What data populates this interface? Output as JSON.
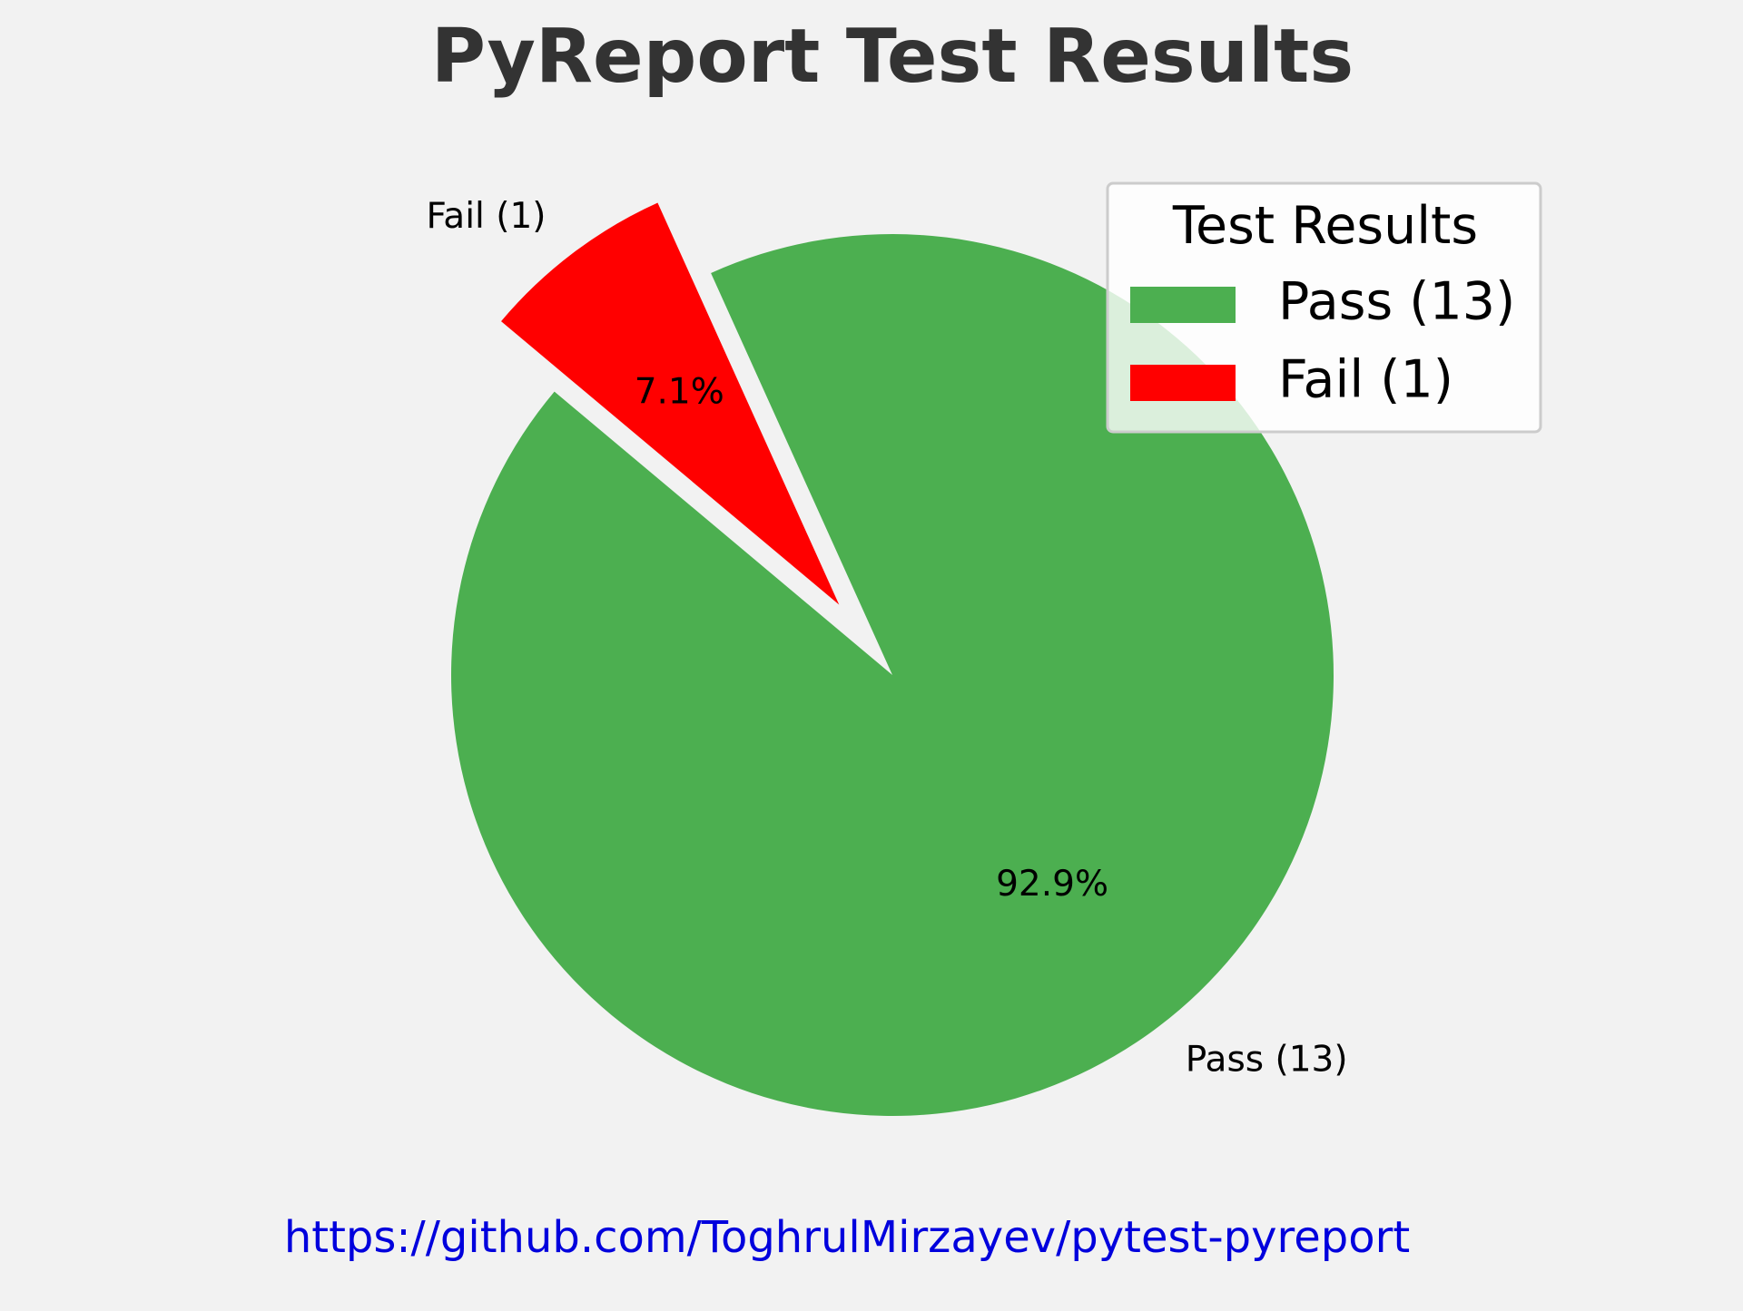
{
  "chart_data": {
    "type": "pie",
    "title": "PyReport Test Results",
    "categories": [
      "Pass (13)",
      "Fail (1)"
    ],
    "values": [
      13,
      1
    ],
    "percent_labels": [
      "92.9%",
      "7.1%"
    ],
    "colors": [
      "#4caf50",
      "#ff0000"
    ],
    "exploded": [
      false,
      true
    ],
    "legend": {
      "title": "Test Results",
      "entries": [
        "Pass (13)",
        "Fail (1)"
      ],
      "placement": "upper-right"
    }
  },
  "footer": {
    "link_text": "https://github.com/ToghrulMirzayev/pytest-pyreport",
    "link_color": "#0000dd"
  },
  "colors": {
    "background": "#f2f2f2",
    "title": "#333333",
    "text": "#000000"
  }
}
